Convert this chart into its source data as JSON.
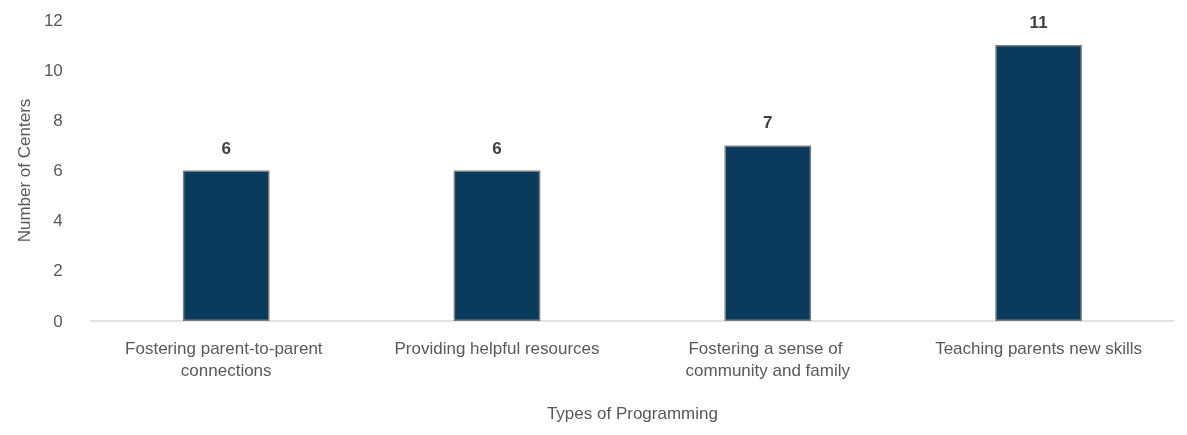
{
  "chart_data": {
    "type": "bar",
    "xlabel": "Types of Programming",
    "ylabel": "Number of Centers",
    "categories": [
      "Fostering parent-to-parent connections",
      "Providing helpful resources",
      "Fostering a sense of community and family",
      "Teaching parents new skills"
    ],
    "values": [
      6,
      6,
      7,
      11
    ],
    "color": "#0a3b5c",
    "ylim": [
      0,
      12
    ],
    "yticks": [
      0,
      2,
      4,
      6,
      8,
      10,
      12
    ],
    "data_labels": true
  }
}
